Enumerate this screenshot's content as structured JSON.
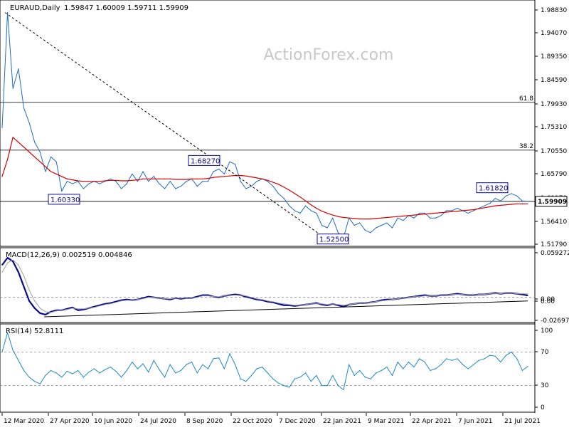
{
  "header": {
    "symbol_label": "EURAUD,Daily",
    "ohlc": "1.59847 1.60009 1.59711 1.59909"
  },
  "watermark": "ActionForex.com",
  "colors": {
    "price": "#1e6dbf",
    "ma": "#d40000",
    "macd": "#0a0a8c",
    "macd_signal": "#a0a0a0",
    "rsi": "#1e88c8",
    "grid": "#000000",
    "watermark": "#c8c8c8",
    "badge_text": "#0a0a8c"
  },
  "chart_data": [
    {
      "type": "line",
      "pane": "price",
      "title": "EURAUD,Daily",
      "ylim": [
        1.51,
        2.005
      ],
      "y_ticks": [
        "1.98830",
        "1.94070",
        "1.89350",
        "1.84590",
        "1.79930",
        "1.75310",
        "1.70550",
        "1.65790",
        "1.61170",
        "1.56410",
        "1.51790"
      ],
      "current_value": "1.59909",
      "horizontal_levels": [
        {
          "label": "61.8",
          "value": 1.8015
        },
        {
          "label": "38.2",
          "value": 1.7038
        },
        {
          "label": "",
          "value": 1.5991
        }
      ],
      "annotations": [
        {
          "label": "1.60330",
          "value": 1.6033
        },
        {
          "label": "1.68270",
          "value": 1.6827
        },
        {
          "label": "1.52500",
          "value": 1.525
        },
        {
          "label": "1.61820",
          "value": 1.6182
        }
      ],
      "trendlines": [
        {
          "from": [
            "2020-03-12",
            1.985
          ],
          "to": [
            "2021-01-25",
            1.525
          ],
          "style": "dashed"
        }
      ],
      "series": [
        {
          "values": [
            1.75,
            1.985,
            1.83,
            1.87,
            1.79,
            1.76,
            1.72,
            1.7,
            1.66,
            1.69,
            1.68,
            1.62,
            1.64,
            1.635,
            1.64,
            1.625,
            1.635,
            1.64,
            1.635,
            1.64,
            1.645,
            1.64,
            1.625,
            1.635,
            1.655,
            1.64,
            1.66,
            1.64,
            1.65,
            1.635,
            1.625,
            1.64,
            1.625,
            1.63,
            1.64,
            1.645,
            1.63,
            1.64,
            1.64,
            1.66,
            1.665,
            1.655,
            1.68,
            1.675,
            1.64,
            1.625,
            1.63,
            1.64,
            1.645,
            1.64,
            1.63,
            1.615,
            1.605,
            1.59,
            1.58,
            1.575,
            1.59,
            1.58,
            1.575,
            1.55,
            1.545,
            1.565,
            1.535,
            1.525,
            1.565,
            1.55,
            1.555,
            1.54,
            1.535,
            1.545,
            1.55,
            1.555,
            1.545,
            1.565,
            1.56,
            1.57,
            1.565,
            1.575,
            1.575,
            1.565,
            1.565,
            1.57,
            1.58,
            1.58,
            1.585,
            1.58,
            1.575,
            1.58,
            1.585,
            1.59,
            1.595,
            1.605,
            1.6,
            1.61,
            1.615,
            1.61,
            1.6,
            1.5991
          ]
        },
        {
          "values": [
            1.65,
            1.685,
            1.73,
            1.72,
            1.71,
            1.7,
            1.69,
            1.68,
            1.67,
            1.66,
            1.655,
            1.65,
            1.645,
            1.643,
            1.641,
            1.64,
            1.64,
            1.64,
            1.64,
            1.641,
            1.642,
            1.642,
            1.641,
            1.641,
            1.642,
            1.643,
            1.645,
            1.645,
            1.645,
            1.645,
            1.645,
            1.645,
            1.644,
            1.644,
            1.644,
            1.645,
            1.645,
            1.645,
            1.646,
            1.648,
            1.649,
            1.65,
            1.651,
            1.652,
            1.652,
            1.651,
            1.649,
            1.647,
            1.645,
            1.642,
            1.638,
            1.634,
            1.628,
            1.622,
            1.615,
            1.608,
            1.6,
            1.592,
            1.585,
            1.579,
            1.575,
            1.571,
            1.568,
            1.566,
            1.565,
            1.564,
            1.563,
            1.563,
            1.563,
            1.564,
            1.565,
            1.566,
            1.567,
            1.568,
            1.569,
            1.57,
            1.571,
            1.572,
            1.573,
            1.574,
            1.575,
            1.576,
            1.577,
            1.578,
            1.579,
            1.58,
            1.581,
            1.582,
            1.584,
            1.586,
            1.588,
            1.59,
            1.591,
            1.592,
            1.593,
            1.594,
            1.594,
            1.594
          ]
        }
      ]
    },
    {
      "type": "line",
      "pane": "macd",
      "title": "MACD(12,26,9) 0.002519 0.004846",
      "ylim": [
        -0.033,
        0.065
      ],
      "y_ticks": [
        "0.059272",
        "0.00",
        "0.00",
        "-0.026978"
      ],
      "zero_line": 0,
      "trendlines": [
        {
          "from": [
            "2020-04-20",
            -0.027
          ],
          "to": [
            "2021-08-16",
            -0.005
          ],
          "style": "solid"
        }
      ],
      "series": [
        {
          "values": [
            0.045,
            0.055,
            0.05,
            0.035,
            0.015,
            -0.005,
            -0.015,
            -0.022,
            -0.024,
            -0.02,
            -0.018,
            -0.018,
            -0.016,
            -0.014,
            -0.018,
            -0.017,
            -0.015,
            -0.013,
            -0.011,
            -0.009,
            -0.008,
            -0.006,
            -0.004,
            -0.003,
            -0.004,
            -0.003,
            -0.001,
            0.001,
            0.0,
            -0.001,
            -0.002,
            -0.003,
            -0.001,
            -0.002,
            -0.001,
            -0.001,
            0.001,
            0.003,
            0.003,
            0.001,
            0.0,
            0.002,
            0.003,
            0.004,
            0.003,
            0.001,
            -0.001,
            -0.003,
            -0.004,
            -0.006,
            -0.007,
            -0.009,
            -0.011,
            -0.011,
            -0.012,
            -0.011,
            -0.01,
            -0.009,
            -0.008,
            -0.01,
            -0.011,
            -0.009,
            -0.011,
            -0.013,
            -0.01,
            -0.009,
            -0.008,
            -0.008,
            -0.007,
            -0.006,
            -0.004,
            -0.003,
            -0.003,
            -0.002,
            -0.001,
            0.0,
            0.001,
            0.002,
            0.003,
            0.002,
            0.002,
            0.003,
            0.003,
            0.004,
            0.005,
            0.004,
            0.003,
            0.003,
            0.004,
            0.004,
            0.005,
            0.006,
            0.005,
            0.006,
            0.006,
            0.005,
            0.004,
            0.0025
          ]
        },
        {
          "values": [
            0.035,
            0.048,
            0.052,
            0.045,
            0.03,
            0.01,
            -0.005,
            -0.015,
            -0.02,
            -0.021,
            -0.019,
            -0.018,
            -0.017,
            -0.015,
            -0.016,
            -0.016,
            -0.015,
            -0.014,
            -0.012,
            -0.01,
            -0.009,
            -0.007,
            -0.005,
            -0.004,
            -0.004,
            -0.003,
            -0.002,
            0.0,
            0.0,
            -0.001,
            -0.002,
            -0.002,
            -0.001,
            -0.001,
            -0.001,
            -0.001,
            0.0,
            0.002,
            0.002,
            0.001,
            0.001,
            0.002,
            0.003,
            0.003,
            0.003,
            0.002,
            0.0,
            -0.002,
            -0.003,
            -0.005,
            -0.006,
            -0.008,
            -0.009,
            -0.01,
            -0.011,
            -0.011,
            -0.01,
            -0.009,
            -0.009,
            -0.009,
            -0.01,
            -0.009,
            -0.01,
            -0.011,
            -0.01,
            -0.009,
            -0.008,
            -0.008,
            -0.007,
            -0.006,
            -0.005,
            -0.004,
            -0.003,
            -0.002,
            -0.001,
            0.0,
            0.001,
            0.001,
            0.002,
            0.002,
            0.002,
            0.003,
            0.003,
            0.004,
            0.004,
            0.004,
            0.003,
            0.003,
            0.004,
            0.004,
            0.005,
            0.005,
            0.005,
            0.006,
            0.006,
            0.005,
            0.005,
            0.0048
          ]
        }
      ]
    },
    {
      "type": "line",
      "pane": "rsi",
      "title": "RSI(14) 52.8111",
      "ylim": [
        0,
        100
      ],
      "y_ticks": [
        "100",
        "70",
        "30",
        "0"
      ],
      "levels": [
        70,
        30
      ],
      "series": [
        {
          "values": [
            70,
            93,
            72,
            60,
            48,
            40,
            35,
            32,
            42,
            48,
            45,
            40,
            47,
            44,
            48,
            40,
            46,
            50,
            45,
            49,
            52,
            47,
            40,
            48,
            58,
            50,
            56,
            46,
            60,
            49,
            40,
            55,
            45,
            48,
            55,
            58,
            45,
            55,
            50,
            62,
            63,
            50,
            68,
            55,
            38,
            35,
            42,
            50,
            52,
            45,
            38,
            33,
            30,
            28,
            38,
            40,
            45,
            35,
            42,
            30,
            30,
            42,
            30,
            25,
            55,
            42,
            48,
            40,
            38,
            45,
            48,
            52,
            42,
            58,
            50,
            58,
            52,
            62,
            58,
            48,
            50,
            55,
            62,
            60,
            62,
            55,
            50,
            55,
            60,
            62,
            66,
            65,
            58,
            66,
            70,
            62,
            48,
            52.8
          ]
        }
      ]
    }
  ],
  "x_axis": {
    "tick_labels": [
      "12 Mar 2020",
      "27 Apr 2020",
      "10 Jun 2020",
      "24 Jul 2020",
      "8 Sep 2020",
      "22 Oct 2020",
      "7 Dec 2020",
      "22 Jan 2021",
      "9 Mar 2021",
      "22 Apr 2021",
      "7 Jun 2021",
      "21 Jul 2021"
    ]
  }
}
